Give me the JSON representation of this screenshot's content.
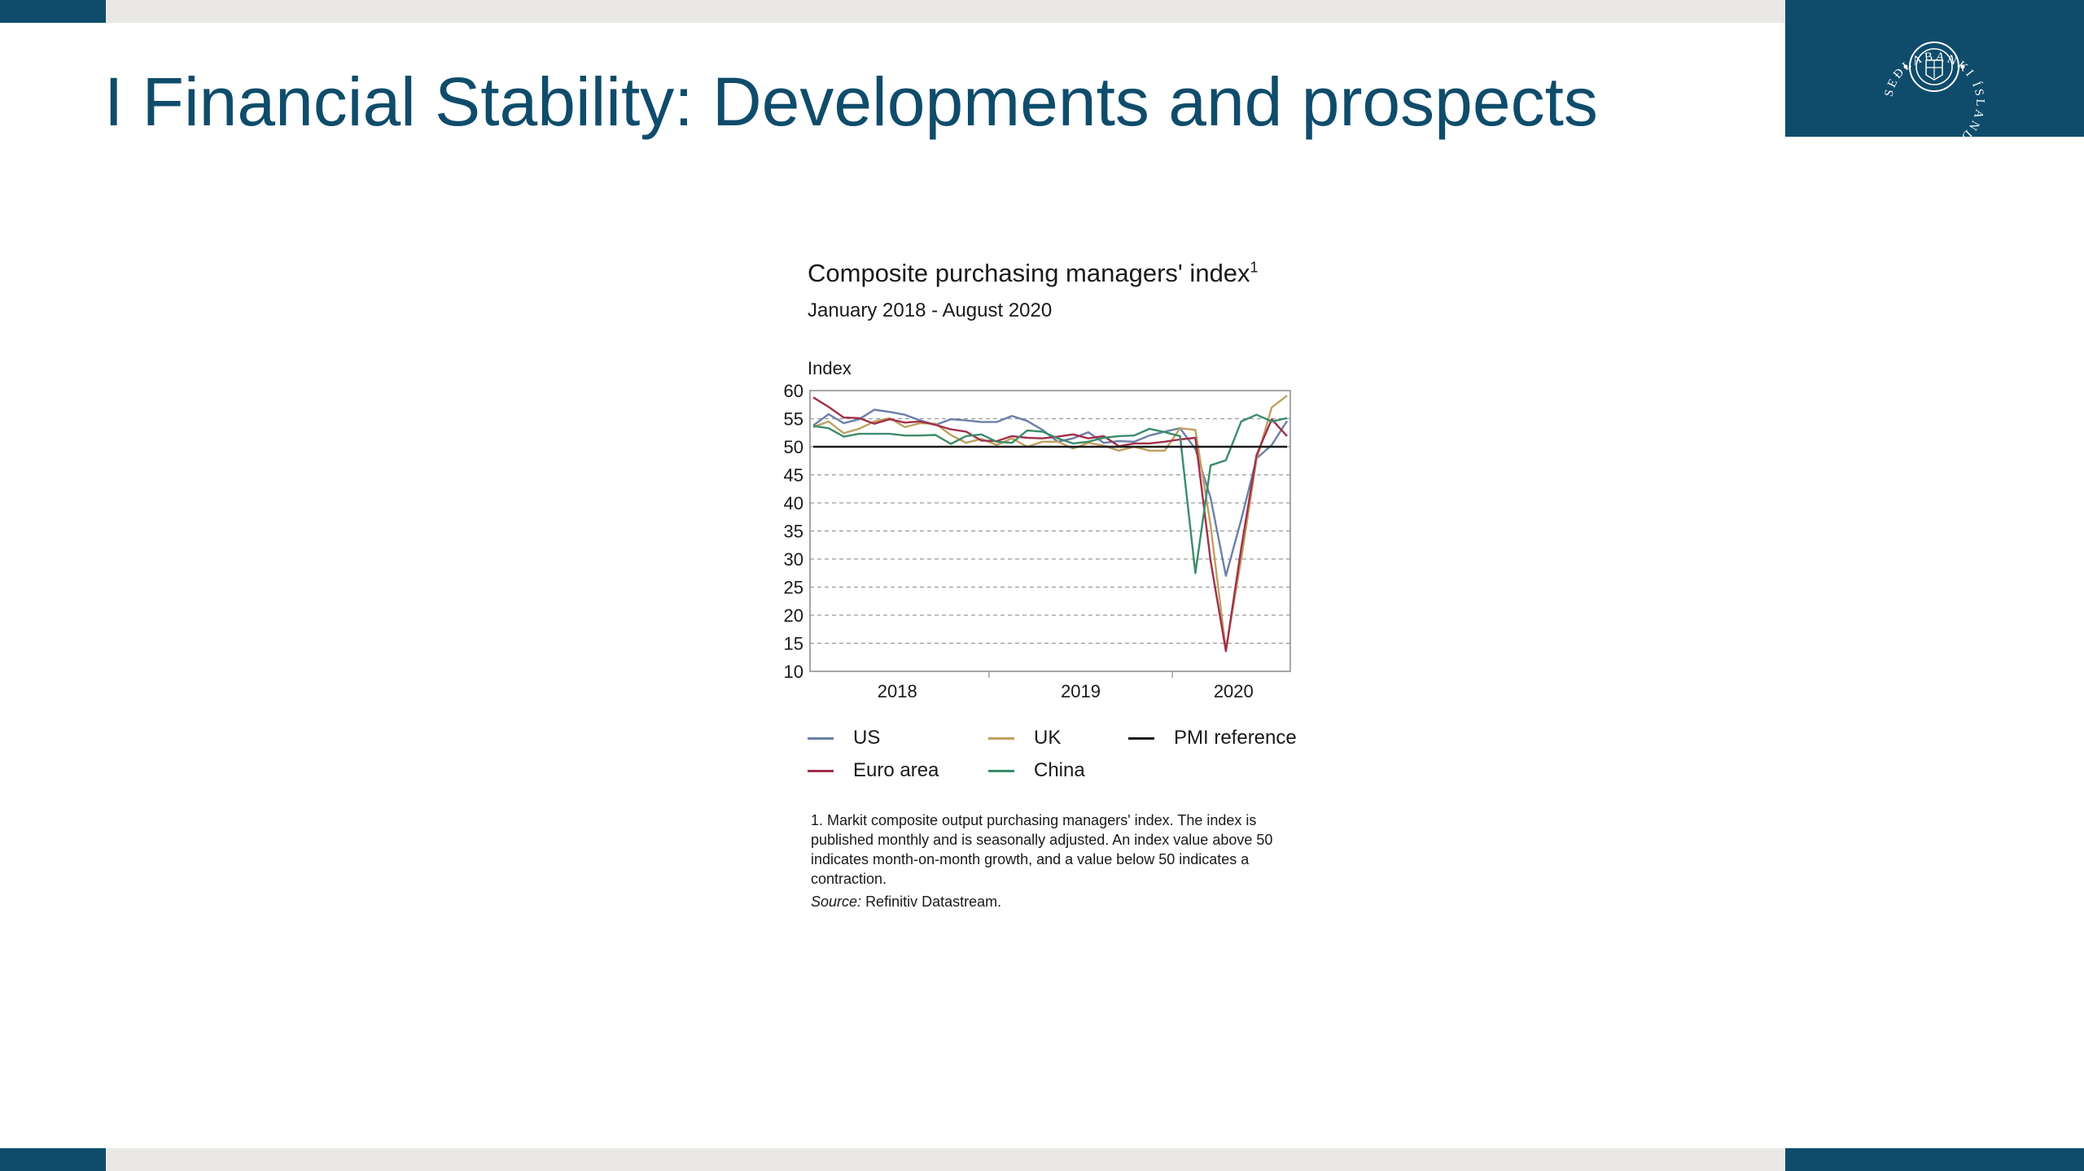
{
  "slide": {
    "title": "I Financial Stability: Developments and prospects"
  },
  "logo": {
    "text": "SEÐLABANKI ÍSLANDS",
    "icon": "central-bank-seal-icon"
  },
  "colors": {
    "brand": "#0f4c6b",
    "band": "#e9e8e4",
    "US": "#6b7fa8",
    "UK": "#c0a060",
    "Euro area": "#a0304a",
    "China": "#3c8c6a",
    "PMI reference": "#1a1a1a"
  },
  "chart_data": {
    "type": "line",
    "title": "Composite purchasing managers' index",
    "title_footnote_marker": "1",
    "subtitle": "January 2018 - August 2020",
    "ylabel": "Index",
    "ylim": [
      10,
      60
    ],
    "yticks": [
      10,
      15,
      20,
      25,
      30,
      35,
      40,
      45,
      50,
      55,
      60
    ],
    "xlim": [
      "2018-01",
      "2020-08"
    ],
    "xtick_labels": [
      "2018",
      "2019",
      "2020"
    ],
    "grid": "horizontal dashed",
    "legend_position": "bottom",
    "x": [
      "2018-01",
      "2018-02",
      "2018-03",
      "2018-04",
      "2018-05",
      "2018-06",
      "2018-07",
      "2018-08",
      "2018-09",
      "2018-10",
      "2018-11",
      "2018-12",
      "2019-01",
      "2019-02",
      "2019-03",
      "2019-04",
      "2019-05",
      "2019-06",
      "2019-07",
      "2019-08",
      "2019-09",
      "2019-10",
      "2019-11",
      "2019-12",
      "2020-01",
      "2020-02",
      "2020-03",
      "2020-04",
      "2020-05",
      "2020-06",
      "2020-07",
      "2020-08"
    ],
    "series": [
      {
        "name": "US",
        "values": [
          53.8,
          55.8,
          54.2,
          54.9,
          56.6,
          56.2,
          55.7,
          54.7,
          53.9,
          54.9,
          54.7,
          54.4,
          54.4,
          55.5,
          54.6,
          53.0,
          50.9,
          51.5,
          52.6,
          50.7,
          51.0,
          50.9,
          52.0,
          52.7,
          53.3,
          49.6,
          40.9,
          27.0,
          37.0,
          47.9,
          50.3,
          54.6
        ]
      },
      {
        "name": "UK",
        "values": [
          53.5,
          54.5,
          52.4,
          53.2,
          54.5,
          55.1,
          53.5,
          54.2,
          54.1,
          52.1,
          50.7,
          51.4,
          50.3,
          51.5,
          50.0,
          50.9,
          50.9,
          49.7,
          50.7,
          50.2,
          49.3,
          50.0,
          49.3,
          49.3,
          53.3,
          53.0,
          36.0,
          13.8,
          30.0,
          47.7,
          57.0,
          59.1
        ]
      },
      {
        "name": "Euro area",
        "values": [
          58.8,
          57.1,
          55.2,
          55.1,
          54.1,
          54.9,
          54.3,
          54.5,
          53.9,
          53.1,
          52.7,
          51.1,
          51.0,
          51.9,
          51.6,
          51.5,
          51.8,
          52.2,
          51.5,
          51.9,
          50.1,
          50.6,
          50.6,
          50.9,
          51.3,
          51.6,
          29.7,
          13.6,
          31.9,
          48.5,
          54.9,
          51.9
        ]
      },
      {
        "name": "China",
        "values": [
          53.7,
          53.3,
          51.8,
          52.3,
          52.3,
          52.3,
          52.0,
          52.0,
          52.1,
          50.5,
          51.9,
          52.2,
          50.9,
          50.7,
          52.9,
          52.7,
          51.5,
          50.6,
          50.9,
          51.6,
          51.9,
          52.0,
          53.2,
          52.6,
          51.9,
          27.5,
          46.7,
          47.6,
          54.5,
          55.7,
          54.5,
          55.1
        ]
      },
      {
        "name": "PMI reference",
        "values": [
          50,
          50,
          50,
          50,
          50,
          50,
          50,
          50,
          50,
          50,
          50,
          50,
          50,
          50,
          50,
          50,
          50,
          50,
          50,
          50,
          50,
          50,
          50,
          50,
          50,
          50,
          50,
          50,
          50,
          50,
          50,
          50
        ]
      }
    ]
  },
  "legend": [
    {
      "key": "US",
      "label": "US"
    },
    {
      "key": "UK",
      "label": "UK"
    },
    {
      "key": "PMI reference",
      "label": "PMI reference"
    },
    {
      "key": "Euro area",
      "label": "Euro area"
    },
    {
      "key": "China",
      "label": "China"
    }
  ],
  "footnote": "1. Markit composite output purchasing managers' index. The index is published monthly and is seasonally adjusted. An index value above 50 indicates month-on-month growth, and a value below 50 indicates a contraction.",
  "source": {
    "label": "Source:",
    "text": "Refinitiv Datastream."
  }
}
